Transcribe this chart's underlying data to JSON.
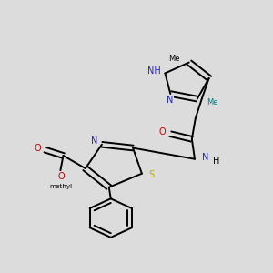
{
  "bg_color": "#dcdcdc",
  "bond_color": "#000000",
  "N_color": "#2222cc",
  "S_color": "#bbaa00",
  "O_color": "#cc0000",
  "NH_teal_color": "#008080",
  "text_color": "#000000",
  "lw": 1.4,
  "fs": 7.0,
  "fs_sm": 6.0,
  "xlim": [
    1.5,
    9.0
  ],
  "ylim": [
    0.8,
    10.2
  ]
}
